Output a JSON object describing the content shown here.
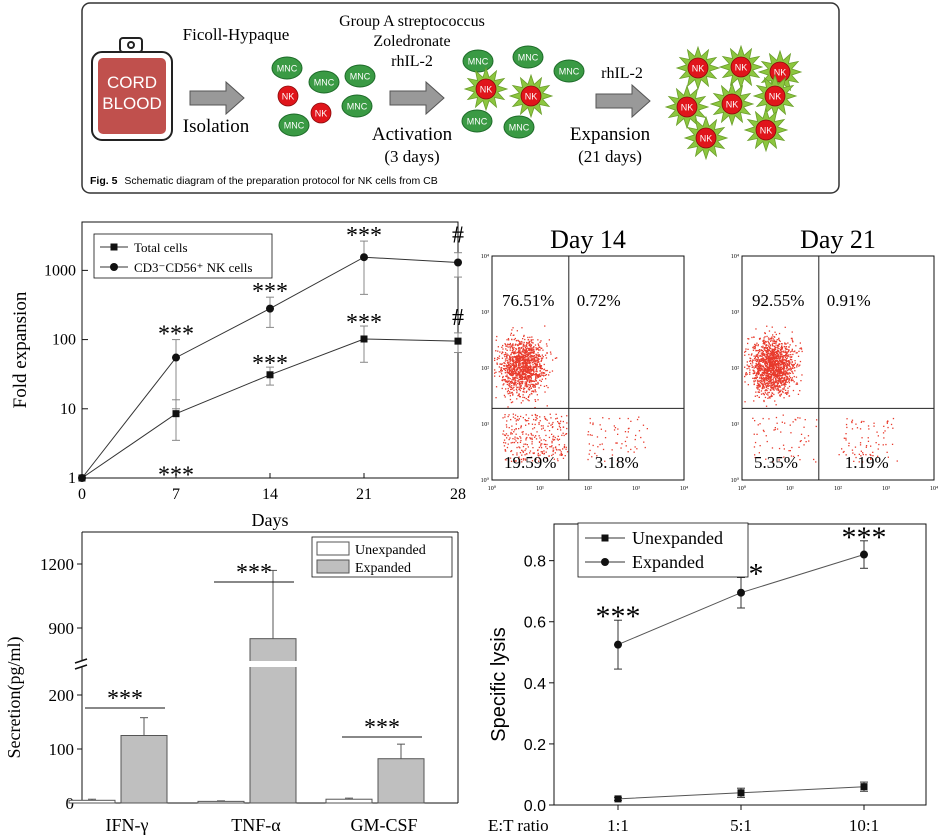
{
  "schematic": {
    "bag_text": [
      "CORD",
      "BLOOD"
    ],
    "isolation_agent": "Ficoll-Hypaque",
    "isolation_label": "Isolation",
    "activation_agents": [
      "Group A streptococcus",
      "Zoledronate",
      "rhIL-2"
    ],
    "activation_label": "Activation",
    "activation_duration": "(3 days)",
    "expansion_agent": "rhIL-2",
    "expansion_label": "Expansion",
    "expansion_duration": "(21 days)",
    "mnc_label": "MNC",
    "nk_label": "NK",
    "caption_prefix": "Fig. 5",
    "caption_text": "Schematic diagram of the preparation protocol for NK cells from CB",
    "colors": {
      "bag": "#c0504d",
      "mnc": "#3a9a44",
      "nk": "#e0151b",
      "spike": "#8cc63f",
      "arrow": "#999999"
    }
  },
  "chart_data": [
    {
      "type": "line",
      "scale": "log",
      "x": [
        0,
        7,
        14,
        21,
        28
      ],
      "xticks": [
        "0",
        "7",
        "14",
        "21",
        "28"
      ],
      "xlabel": "Days",
      "ylabel": "Fold expansion",
      "yticks": [
        "1",
        "10",
        "100",
        "1000"
      ],
      "ylim": [
        1,
        5000
      ],
      "legend_placement": "top-left",
      "series": [
        {
          "name": "Total cells",
          "marker": "square",
          "values": [
            1,
            8.5,
            31,
            102,
            95
          ],
          "err": [
            0,
            5,
            9,
            55,
            30
          ]
        },
        {
          "name": "CD3⁻CD56⁺ NK cells",
          "marker": "circle",
          "values": [
            1,
            55,
            280,
            1550,
            1300
          ],
          "err": [
            0,
            45,
            130,
            1100,
            500
          ]
        }
      ],
      "annotations": [
        {
          "x": 7,
          "text": "***",
          "pos": "above-nk"
        },
        {
          "x": 14,
          "text": "***",
          "pos": "above-nk"
        },
        {
          "x": 21,
          "text": "***",
          "pos": "above-nk"
        },
        {
          "x": 28,
          "text": "#",
          "pos": "above-nk"
        },
        {
          "x": 7,
          "text": "***",
          "pos": "below-total"
        },
        {
          "x": 14,
          "text": "***",
          "pos": "above-total"
        },
        {
          "x": 21,
          "text": "***",
          "pos": "above-total"
        },
        {
          "x": 28,
          "text": "#",
          "pos": "above-total"
        }
      ]
    },
    {
      "type": "scatter",
      "title": "Day 14",
      "quadrants": {
        "top_left": "76.51%",
        "top_right": "0.72%",
        "bottom_left": "19.59%",
        "bottom_right": "3.18%"
      },
      "tick_labels": [
        "10⁰",
        "10¹",
        "10²",
        "10³",
        "10⁴"
      ],
      "point_color": "#e83a2c"
    },
    {
      "type": "scatter",
      "title": "Day 21",
      "quadrants": {
        "top_left": "92.55%",
        "top_right": "0.91%",
        "bottom_left": "5.35%",
        "bottom_right": "1.19%"
      },
      "tick_labels": [
        "10⁰",
        "10¹",
        "10²",
        "10³",
        "10⁴"
      ],
      "point_color": "#e83a2c"
    },
    {
      "type": "bar",
      "categories": [
        "IFN-γ",
        "TNF-α",
        "GM-CSF"
      ],
      "ylabel": "Secretion(pg/ml)",
      "yticks_lower": [
        "0",
        "100",
        "200"
      ],
      "yticks_upper": [
        "900",
        "1200"
      ],
      "axis_break": [
        250,
        750
      ],
      "legend_placement": "top-right",
      "series": [
        {
          "name": "Unexpanded",
          "color": "#ffffff",
          "values": [
            5,
            3,
            7
          ],
          "err": [
            2,
            1,
            2
          ]
        },
        {
          "name": "Expanded",
          "color": "#bfbfbf",
          "values": [
            125,
            850,
            82
          ],
          "err": [
            33,
            320,
            27
          ]
        }
      ],
      "significance": [
        "***",
        "***",
        "***"
      ]
    },
    {
      "type": "line",
      "categories": [
        "1:1",
        "5:1",
        "10:1"
      ],
      "xlabel": "E:T ratio",
      "ylabel": "Specific lysis",
      "yticks": [
        "0.0",
        "0.2",
        "0.4",
        "0.6",
        "0.8"
      ],
      "ylim": [
        0,
        0.92
      ],
      "legend_placement": "top-left",
      "series": [
        {
          "name": "Unexpanded",
          "marker": "square",
          "values": [
            0.02,
            0.04,
            0.06
          ],
          "err": [
            0.005,
            0.015,
            0.015
          ]
        },
        {
          "name": "Expanded",
          "marker": "circle",
          "values": [
            0.525,
            0.695,
            0.82
          ],
          "err": [
            0.08,
            0.05,
            0.045
          ]
        }
      ],
      "significance": [
        "***",
        "***",
        "***"
      ]
    }
  ]
}
